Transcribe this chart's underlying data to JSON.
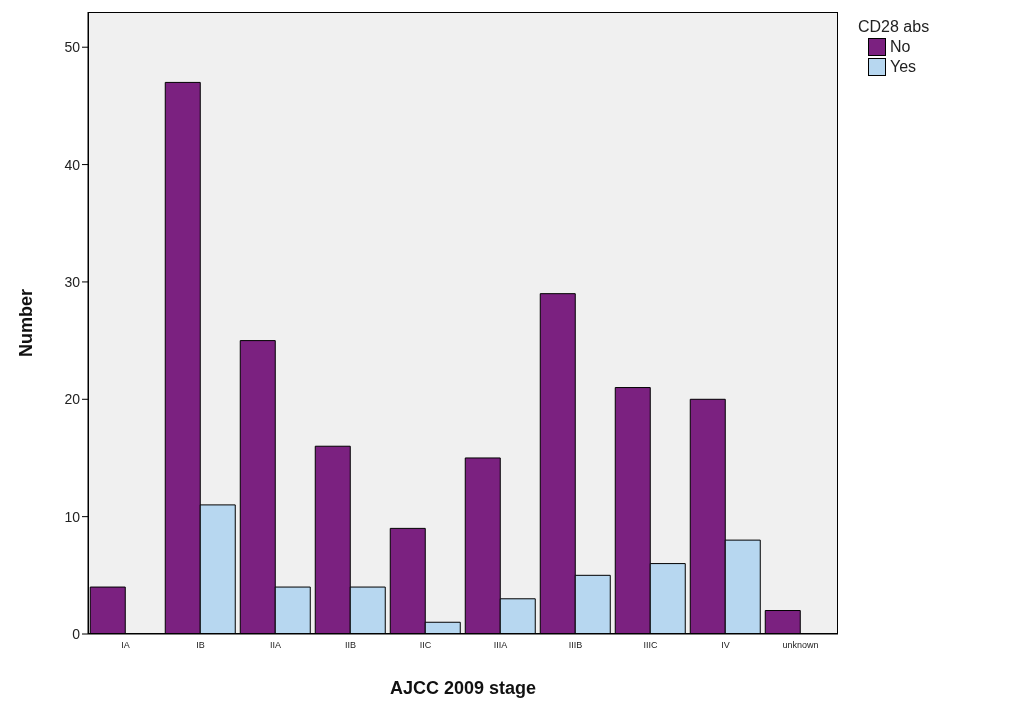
{
  "chart_data": {
    "type": "bar",
    "xlabel": "AJCC 2009 stage",
    "ylabel": "Number",
    "legend_title": "CD28 abs",
    "legend": "top right",
    "grid": false,
    "categories": [
      "IA",
      "IB",
      "IIA",
      "IIB",
      "IIC",
      "IIIA",
      "IIIB",
      "IIIC",
      "IV",
      "unknown"
    ],
    "series": [
      {
        "name": "No",
        "color": "#7b2180",
        "values": [
          4,
          47,
          25,
          16,
          9,
          15,
          29,
          21,
          20,
          2
        ]
      },
      {
        "name": "Yes",
        "color": "#b7d7f0",
        "values": [
          0,
          11,
          4,
          4,
          1,
          3,
          5,
          6,
          8,
          0
        ]
      }
    ],
    "ylim": [
      0,
      53
    ],
    "yticks": [
      0,
      10,
      20,
      30,
      40,
      50
    ]
  }
}
